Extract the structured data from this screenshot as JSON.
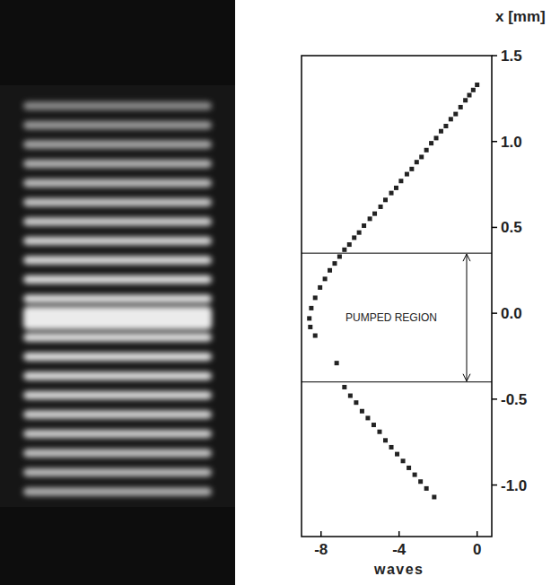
{
  "chart_data": {
    "type": "scatter",
    "x_label": "waves",
    "y_label": "x [mm]",
    "x": [
      0.0,
      -0.2,
      -0.4,
      -0.6,
      -0.85,
      -1.1,
      -1.35,
      -1.6,
      -1.85,
      -2.1,
      -2.35,
      -2.6,
      -2.85,
      -3.1,
      -3.35,
      -3.6,
      -3.9,
      -4.15,
      -4.4,
      -4.7,
      -4.95,
      -5.25,
      -5.5,
      -5.8,
      -6.05,
      -6.3,
      -6.55,
      -6.8,
      -7.05,
      -7.3,
      -7.55,
      -7.8,
      -8.05,
      -8.3,
      -8.5,
      -8.6,
      -8.55,
      -8.3,
      -7.2,
      -6.8,
      -6.5,
      -6.2,
      -5.9,
      -5.6,
      -5.3,
      -5.0,
      -4.7,
      -4.4,
      -4.1,
      -3.8,
      -3.5,
      -3.2,
      -2.9,
      -2.6,
      -2.2
    ],
    "values": [
      1.33,
      1.3,
      1.27,
      1.24,
      1.2,
      1.16,
      1.13,
      1.09,
      1.06,
      1.02,
      0.99,
      0.95,
      0.91,
      0.88,
      0.84,
      0.81,
      0.77,
      0.73,
      0.7,
      0.66,
      0.62,
      0.58,
      0.55,
      0.51,
      0.47,
      0.44,
      0.4,
      0.37,
      0.33,
      0.29,
      0.25,
      0.2,
      0.15,
      0.09,
      0.03,
      -0.03,
      -0.08,
      -0.13,
      -0.29,
      -0.43,
      -0.48,
      -0.52,
      -0.57,
      -0.61,
      -0.65,
      -0.69,
      -0.74,
      -0.78,
      -0.82,
      -0.86,
      -0.9,
      -0.94,
      -0.98,
      -1.02,
      -1.07
    ],
    "color": "#222222",
    "marker": "square",
    "xlim": [
      -9,
      0.75
    ],
    "xticks": [
      -8,
      -4,
      0
    ],
    "ylim": [
      -1.3,
      1.5
    ],
    "yticks": [
      {
        "value": 1.5,
        "label": "1.5"
      },
      {
        "value": 1,
        "label": "1.0"
      },
      {
        "value": 0.5,
        "label": "0.5"
      },
      {
        "value": 0,
        "label": "0.0"
      },
      {
        "value": -0.5,
        "label": "-0.5"
      },
      {
        "value": -1,
        "label": "-1.0"
      }
    ],
    "grid": false,
    "annotations": [
      {
        "text": "PUMPED REGION",
        "y_range": [
          -0.4,
          0.35
        ]
      }
    ]
  }
}
